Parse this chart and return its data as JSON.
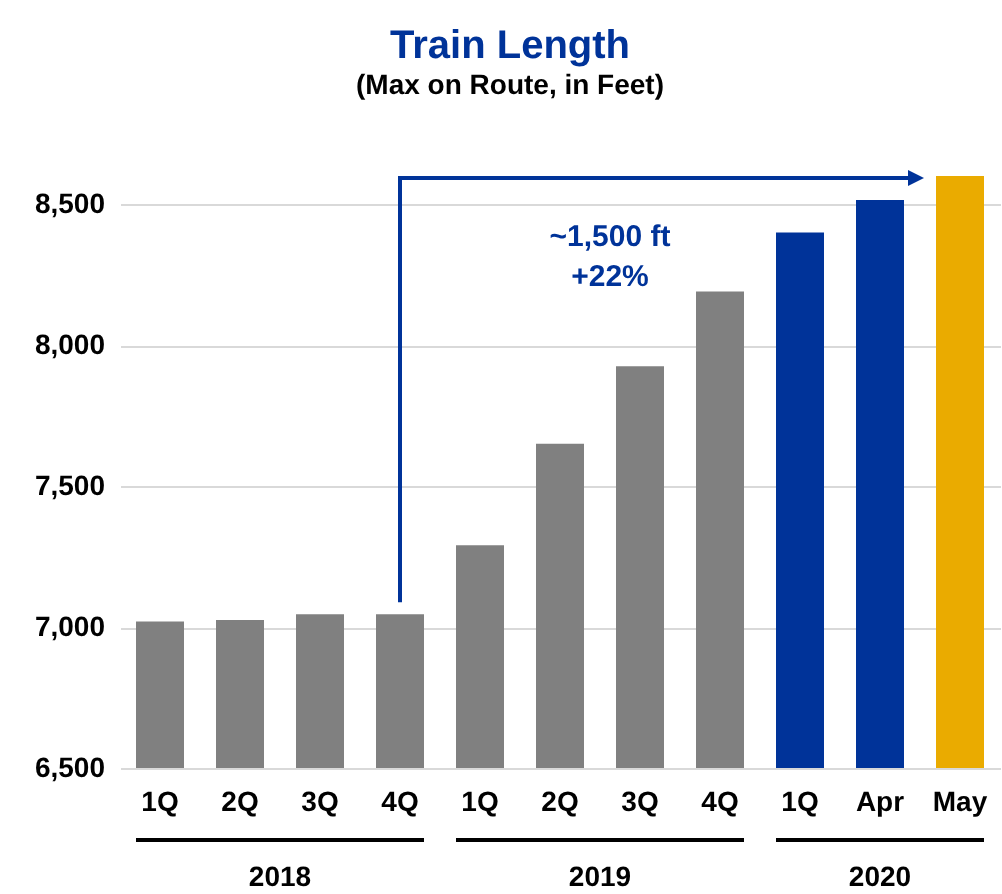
{
  "chart_data": {
    "type": "bar",
    "title": "Train Length",
    "subtitle": "(Max on Route, in Feet)",
    "categories": [
      "1Q",
      "2Q",
      "3Q",
      "4Q",
      "1Q",
      "2Q",
      "3Q",
      "4Q",
      "1Q",
      "Apr",
      "May"
    ],
    "values": [
      7020,
      7025,
      7045,
      7045,
      7290,
      7650,
      7925,
      8190,
      8400,
      8515,
      8600
    ],
    "colors": [
      "#808080",
      "#808080",
      "#808080",
      "#808080",
      "#808080",
      "#808080",
      "#808080",
      "#808080",
      "#003399",
      "#003399",
      "#eaab00"
    ],
    "ylim": [
      6500,
      8600
    ],
    "yticks": [
      {
        "value": 6500,
        "label": "6,500"
      },
      {
        "value": 7000,
        "label": "7,000"
      },
      {
        "value": 7500,
        "label": "7,500"
      },
      {
        "value": 8000,
        "label": "8,000"
      },
      {
        "value": 8500,
        "label": "8,500"
      }
    ],
    "grid": "y",
    "annotations": [
      "~1,500 ft\n+22%",
      "2018",
      "2019",
      "2020"
    ]
  }
}
